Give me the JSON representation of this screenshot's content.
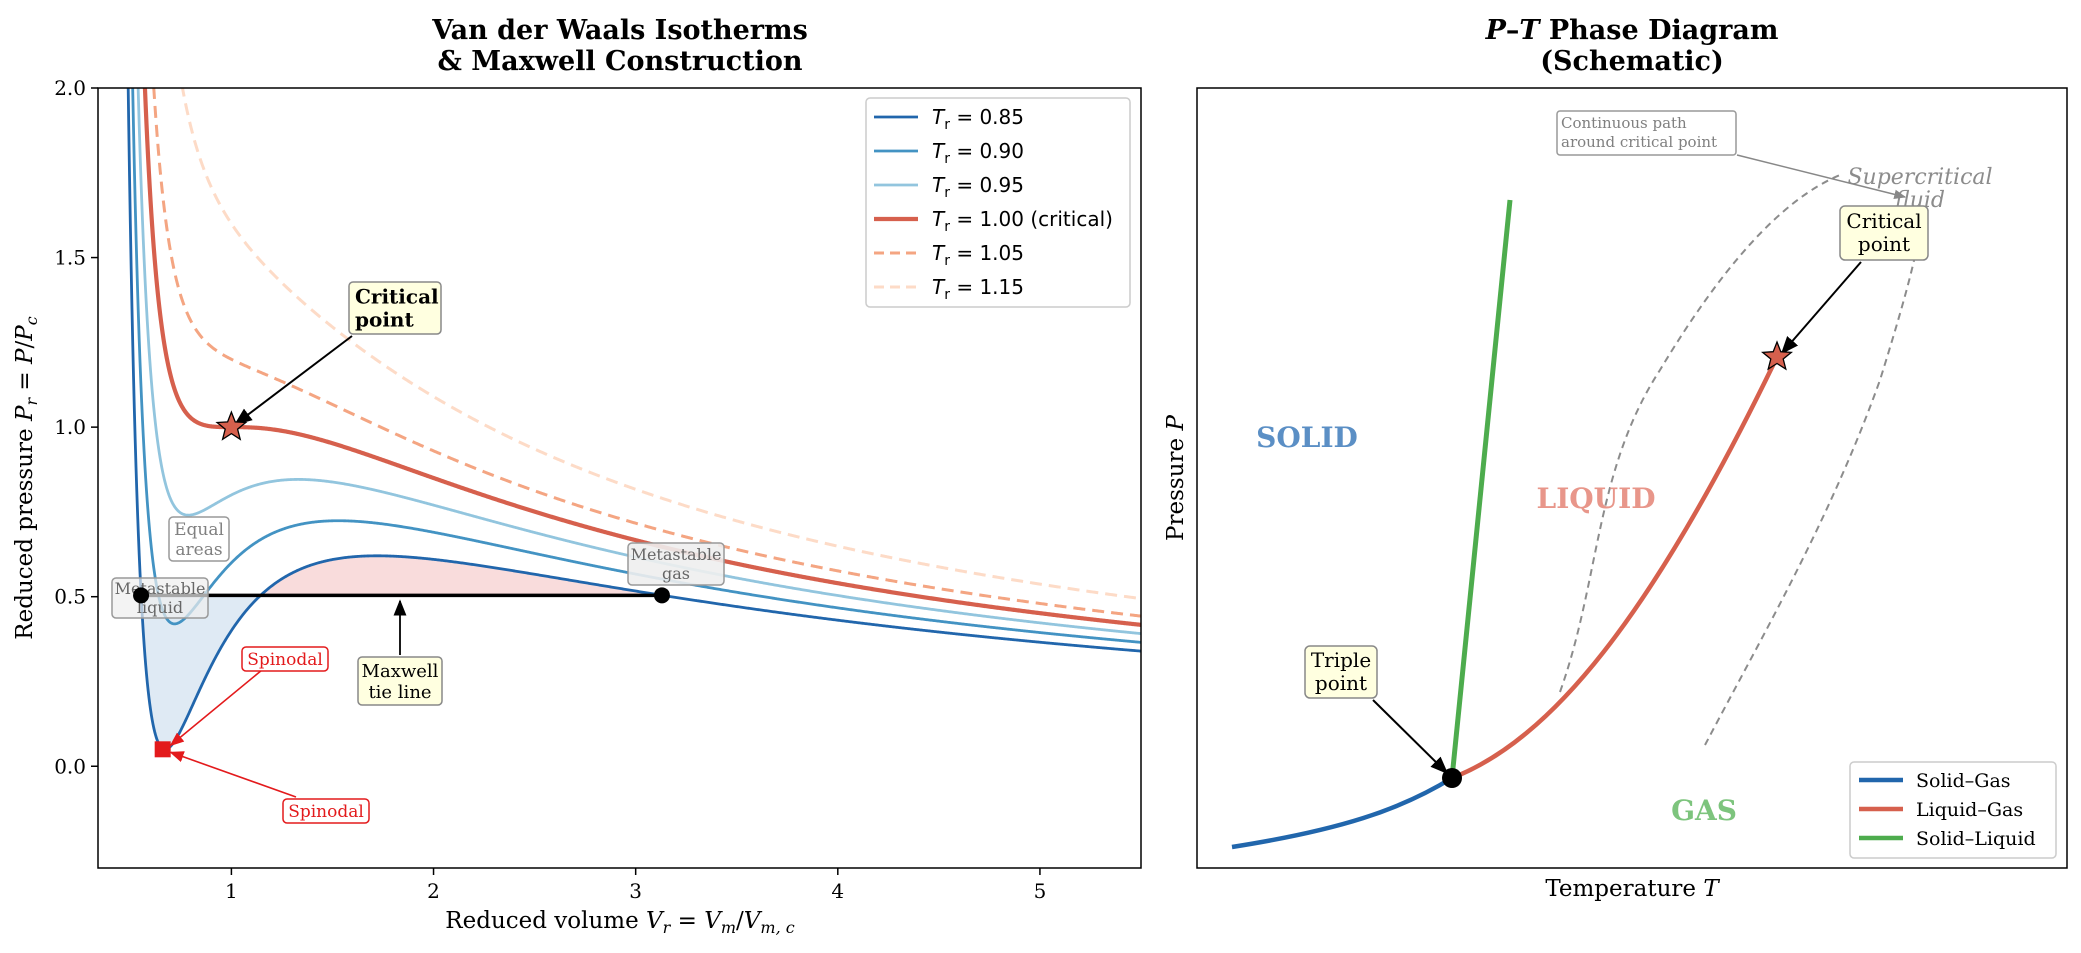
{
  "chart_data": [
    {
      "type": "line",
      "title_line1": "Van der Waals Isotherms",
      "title_line2": "& Maxwell Construction",
      "xlabel_prefix": "Reduced volume  ",
      "xlabel_math_main": "V",
      "xlabel_math_sub": "r",
      "xlabel_math_rest": " = ",
      "xlabel_math_main2": "V",
      "xlabel_math_sub2": "m",
      "xlabel_math_rest2": "/",
      "xlabel_math_main3": "V",
      "xlabel_math_sub3": "m, c",
      "ylabel_prefix": "Reduced pressure  ",
      "ylabel_math": "Pr = P/Pc",
      "xlim": [
        0.34,
        5.5
      ],
      "ylim": [
        -0.3,
        2.0
      ],
      "xticks": [
        1,
        2,
        3,
        4,
        5
      ],
      "yticks": [
        0.0,
        0.5,
        1.0,
        1.5,
        2.0
      ],
      "xtick_labels": [
        "1",
        "2",
        "3",
        "4",
        "5"
      ],
      "ytick_labels": [
        "0.0",
        "0.5",
        "1.0",
        "1.5",
        "2.0"
      ],
      "legend_position": "top-right",
      "series": [
        {
          "name": "Tr = 0.85",
          "label_main": "T",
          "label_sub": "r",
          "label_rest": " = 0.85",
          "Tr": 0.85,
          "color": "#2166ac",
          "dash": false,
          "width": 2.8
        },
        {
          "name": "Tr = 0.90",
          "label_main": "T",
          "label_sub": "r",
          "label_rest": " = 0.90",
          "Tr": 0.9,
          "color": "#4393c3",
          "dash": false,
          "width": 2.8
        },
        {
          "name": "Tr = 0.95",
          "label_main": "T",
          "label_sub": "r",
          "label_rest": " = 0.95",
          "Tr": 0.95,
          "color": "#92c5de",
          "dash": false,
          "width": 2.8
        },
        {
          "name": "Tr = 1.00 (critical)",
          "label_main": "T",
          "label_sub": "r",
          "label_rest": " = 1.00 (critical)",
          "Tr": 1.0,
          "color": "#d6604d",
          "dash": false,
          "width": 4.2
        },
        {
          "name": "Tr = 1.05",
          "label_main": "T",
          "label_sub": "r",
          "label_rest": " = 1.05",
          "Tr": 1.05,
          "color": "#f4a582",
          "dash": true,
          "width": 3.0
        },
        {
          "name": "Tr = 1.15",
          "label_main": "T",
          "label_sub": "r",
          "label_rest": " = 1.15",
          "Tr": 1.15,
          "color": "#fddbc7",
          "dash": true,
          "width": 3.0
        }
      ],
      "maxwell": {
        "Tr": 0.85,
        "P": 0.504,
        "V_liquid": 0.553,
        "V_gas": 3.13,
        "label_line1": "Maxwell",
        "label_line2": "tie line"
      },
      "critical_point": {
        "V": 1.0,
        "P": 1.0,
        "label_line1": "Critical",
        "label_line2": "point"
      },
      "spinodal": {
        "V": 0.66,
        "P": 0.05,
        "label": "Spinodal"
      },
      "annotations": {
        "equal_areas_line1": "Equal",
        "equal_areas_line2": "areas",
        "metastable_liquid_line1": "Metastable",
        "metastable_liquid_line2": "liquid",
        "metastable_gas_line1": "Metastable",
        "metastable_gas_line2": "gas"
      }
    },
    {
      "type": "line",
      "title_line1_italic": "P",
      "title_line1_dash": "–",
      "title_line1_italic2": "T",
      "title_line1_rest": " Phase Diagram",
      "title_line2": "(Schematic)",
      "xlabel_prefix": "Temperature  ",
      "xlabel_math": "T",
      "ylabel_prefix": "Pressure  ",
      "ylabel_math": "P",
      "legend_position": "bottom-right",
      "series": [
        {
          "name": "Solid–Gas",
          "color": "#2166ac"
        },
        {
          "name": "Liquid–Gas",
          "color": "#d6604d"
        },
        {
          "name": "Solid–Liquid",
          "color": "#4dac4d"
        }
      ],
      "regions": {
        "solid": "SOLID",
        "liquid": "LIQUID",
        "gas": "GAS",
        "supercritical_line1": "Supercritical",
        "supercritical_line2": "fluid"
      },
      "annotations": {
        "triple_line1": "Triple",
        "triple_line2": "point",
        "critical_line1": "Critical",
        "critical_line2": "point",
        "path_line1": "Continuous path",
        "path_line2": "around critical point"
      }
    }
  ]
}
